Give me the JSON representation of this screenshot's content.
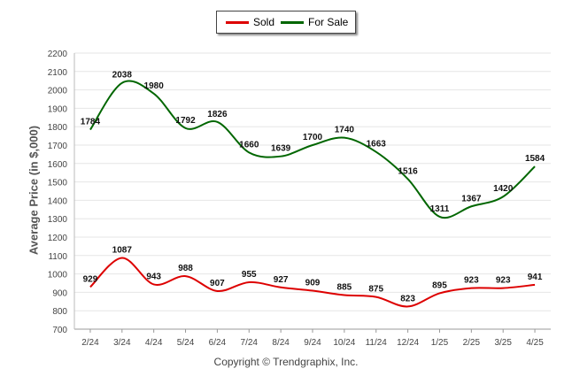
{
  "chart_data": {
    "type": "line",
    "title": "",
    "xlabel": "",
    "ylabel": "Average Price (in $,000)",
    "categories": [
      "2/24",
      "3/24",
      "4/24",
      "5/24",
      "6/24",
      "7/24",
      "8/24",
      "9/24",
      "10/24",
      "11/24",
      "12/24",
      "1/25",
      "2/25",
      "3/25",
      "4/25"
    ],
    "series": [
      {
        "name": "Sold",
        "color": "#dd0000",
        "values": [
          929,
          1087,
          943,
          988,
          907,
          955,
          927,
          909,
          885,
          875,
          823,
          895,
          923,
          923,
          941
        ]
      },
      {
        "name": "For Sale",
        "color": "#006600",
        "values": [
          1784,
          2038,
          1980,
          1792,
          1826,
          1660,
          1639,
          1700,
          1740,
          1663,
          1516,
          1311,
          1367,
          1420,
          1584
        ]
      }
    ],
    "ylim": [
      700,
      2200
    ],
    "yticks": [
      700,
      800,
      900,
      1000,
      1100,
      1200,
      1300,
      1400,
      1500,
      1600,
      1700,
      1800,
      1900,
      2000,
      2100,
      2200
    ],
    "grid": true,
    "legend": "top-center"
  },
  "legend": {
    "sold": "Sold",
    "for_sale": "For Sale"
  },
  "footer": {
    "copyright": "Copyright © Trendgraphix, Inc."
  }
}
